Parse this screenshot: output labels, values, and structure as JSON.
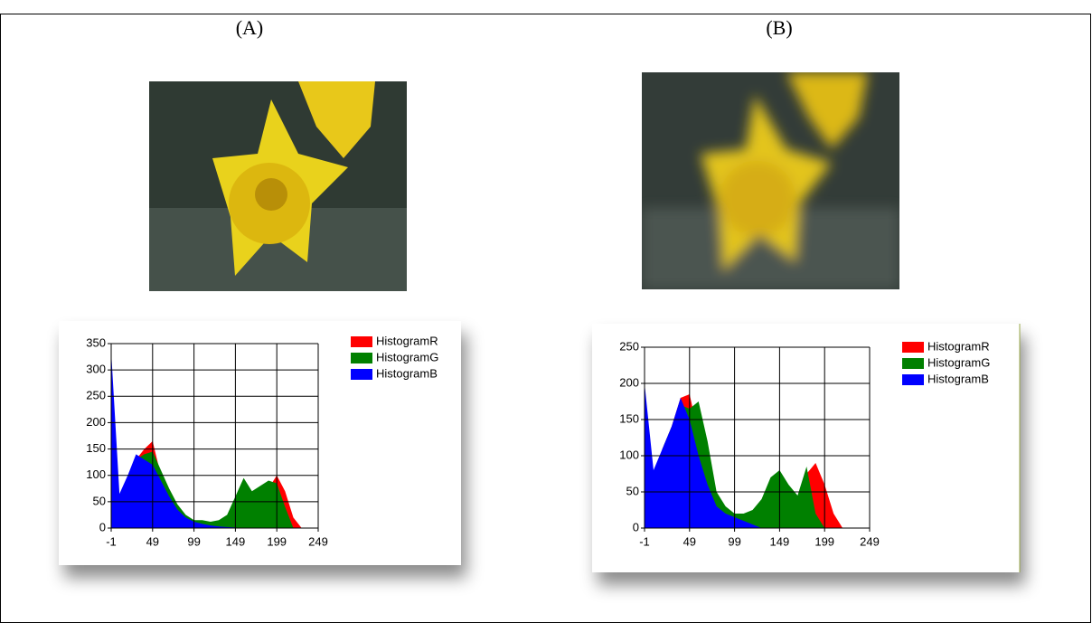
{
  "panel_labels": [
    "(A)",
    "(B)"
  ],
  "chart_data": [
    {
      "type": "area",
      "grid": true,
      "x": [
        -1,
        9,
        19,
        29,
        39,
        49,
        59,
        69,
        79,
        89,
        99,
        109,
        119,
        129,
        139,
        149,
        159,
        169,
        179,
        189,
        199,
        209,
        219,
        229,
        239,
        249
      ],
      "xlim": [
        -1,
        249
      ],
      "xticks": [
        -1,
        49,
        99,
        149,
        199,
        249
      ],
      "ylim": [
        0,
        350
      ],
      "yticks": [
        0,
        50,
        100,
        150,
        200,
        250,
        300,
        350
      ],
      "series": [
        {
          "name": "HistogramR",
          "color": "#ff0000",
          "values": [
            0,
            40,
            90,
            130,
            150,
            165,
            100,
            60,
            30,
            20,
            15,
            12,
            10,
            12,
            15,
            20,
            40,
            50,
            60,
            75,
            100,
            70,
            20,
            0,
            0,
            0
          ]
        },
        {
          "name": "HistogramG",
          "color": "#008000",
          "values": [
            0,
            40,
            90,
            130,
            140,
            145,
            110,
            75,
            45,
            25,
            15,
            15,
            12,
            15,
            25,
            60,
            95,
            70,
            80,
            90,
            85,
            40,
            0,
            0,
            0,
            0
          ]
        },
        {
          "name": "HistogramB",
          "color": "#0000ff",
          "values": [
            335,
            65,
            100,
            140,
            130,
            120,
            90,
            60,
            35,
            20,
            12,
            8,
            5,
            3,
            2,
            1,
            0,
            0,
            0,
            0,
            0,
            0,
            0,
            0,
            0,
            0
          ]
        }
      ]
    },
    {
      "type": "area",
      "grid": true,
      "x": [
        -1,
        9,
        19,
        29,
        39,
        49,
        59,
        69,
        79,
        89,
        99,
        109,
        119,
        129,
        139,
        149,
        159,
        169,
        179,
        189,
        199,
        209,
        219,
        229,
        239,
        249
      ],
      "xlim": [
        -1,
        249
      ],
      "xticks": [
        -1,
        49,
        99,
        149,
        199,
        249
      ],
      "ylim": [
        0,
        250
      ],
      "yticks": [
        0,
        50,
        100,
        150,
        200,
        250
      ],
      "series": [
        {
          "name": "HistogramR",
          "color": "#ff0000",
          "values": [
            0,
            70,
            110,
            140,
            180,
            185,
            130,
            90,
            40,
            25,
            20,
            15,
            20,
            30,
            60,
            70,
            50,
            40,
            75,
            90,
            60,
            20,
            0,
            0,
            0,
            0
          ]
        },
        {
          "name": "HistogramG",
          "color": "#008000",
          "values": [
            0,
            70,
            110,
            140,
            170,
            165,
            175,
            120,
            50,
            30,
            20,
            20,
            25,
            40,
            70,
            80,
            60,
            45,
            85,
            20,
            0,
            0,
            0,
            0,
            0,
            0
          ]
        },
        {
          "name": "HistogramB",
          "color": "#0000ff",
          "values": [
            200,
            80,
            110,
            140,
            180,
            150,
            100,
            60,
            30,
            20,
            15,
            10,
            5,
            0,
            0,
            0,
            0,
            0,
            0,
            0,
            0,
            0,
            0,
            0,
            0,
            0
          ]
        }
      ]
    }
  ]
}
